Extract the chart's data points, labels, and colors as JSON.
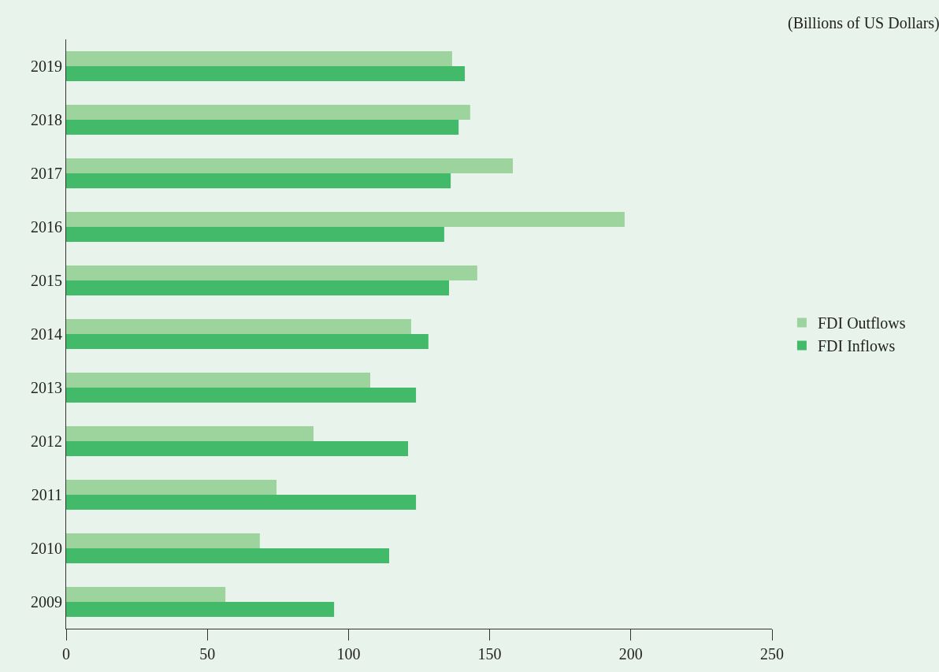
{
  "chart_data": {
    "type": "bar",
    "orientation": "horizontal",
    "annotations": [
      "(Billions of US Dollars)"
    ],
    "categories": [
      "2019",
      "2018",
      "2017",
      "2016",
      "2015",
      "2014",
      "2013",
      "2012",
      "2011",
      "2010",
      "2009"
    ],
    "series": [
      {
        "name": "FDI Outflows",
        "color": "#9dd39d",
        "values": [
          136.7,
          143.1,
          158.2,
          197.8,
          145.6,
          122.2,
          107.7,
          87.6,
          74.5,
          68.6,
          56.4
        ]
      },
      {
        "name": "FDI Inflows",
        "color": "#43b96a",
        "values": [
          141.2,
          139.0,
          136.2,
          133.9,
          135.6,
          128.3,
          123.9,
          121.1,
          123.9,
          114.4,
          94.9
        ]
      }
    ],
    "xlim": [
      0,
      250
    ],
    "xticks": [
      0,
      50,
      100,
      150,
      200,
      250
    ],
    "grid": false,
    "legend": "right"
  }
}
